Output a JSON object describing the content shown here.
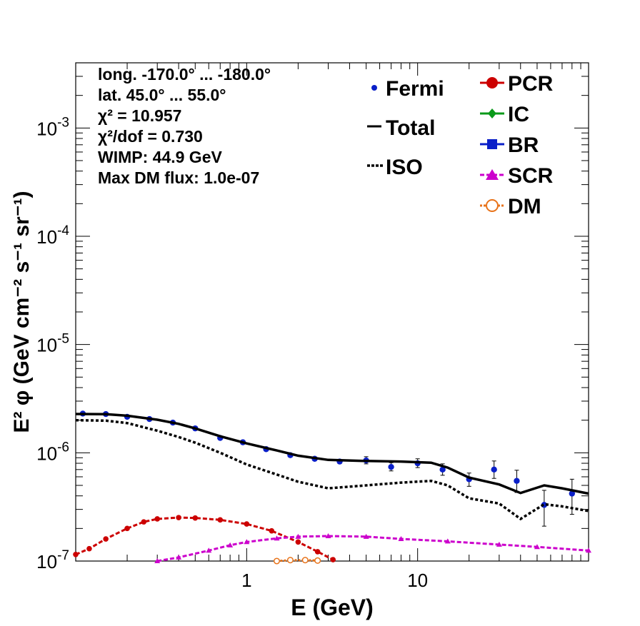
{
  "chart_data": {
    "type": "line",
    "xlabel": "E (GeV)",
    "ylabel": "E² φ (GeV cm⁻² s⁻¹ sr⁻¹)",
    "x_scale": "log",
    "y_scale": "log",
    "xlim": [
      0.1,
      100
    ],
    "ylim": [
      1e-07,
      0.004
    ],
    "x_tick_labels": [
      {
        "value": 1,
        "label": "1"
      },
      {
        "value": 10,
        "label": "10"
      }
    ],
    "y_tick_labels": [
      {
        "value": 1e-07,
        "base": "10",
        "exp": "-7"
      },
      {
        "value": 1e-06,
        "base": "10",
        "exp": "-6"
      },
      {
        "value": 1e-05,
        "base": "10",
        "exp": "-5"
      },
      {
        "value": 0.0001,
        "base": "10",
        "exp": "-4"
      },
      {
        "value": 0.001,
        "base": "10",
        "exp": "-3"
      }
    ],
    "annotations": [
      "long. -170.0° ... -180.0°",
      "lat. 45.0° ... 55.0°",
      "χ² = 10.957",
      "χ²/dof = 0.730",
      "WIMP: 44.9 GeV",
      "Max DM flux: 1.0e-07"
    ],
    "legend_left": [
      {
        "name": "Fermi",
        "style": "point",
        "color": "#0a1fc8"
      },
      {
        "name": "Total",
        "style": "solid",
        "color": "#000000"
      },
      {
        "name": "ISO",
        "style": "dotted",
        "color": "#000000"
      }
    ],
    "legend_right": [
      {
        "name": "PCR",
        "style": "circle",
        "color": "#cc0000"
      },
      {
        "name": "IC",
        "style": "diamond",
        "color": "#0a9a1a"
      },
      {
        "name": "BR",
        "style": "square",
        "color": "#0a1fc8"
      },
      {
        "name": "SCR",
        "style": "triangle",
        "color": "#cc00cc"
      },
      {
        "name": "DM",
        "style": "open-circle",
        "color": "#e8731a"
      }
    ],
    "series": [
      {
        "name": "Fermi",
        "kind": "points",
        "color": "#0a1fc8",
        "points": [
          {
            "x": 0.11,
            "y": 2.3e-06
          },
          {
            "x": 0.15,
            "y": 2.28e-06
          },
          {
            "x": 0.2,
            "y": 2.15e-06
          },
          {
            "x": 0.27,
            "y": 2.05e-06
          },
          {
            "x": 0.37,
            "y": 1.9e-06
          },
          {
            "x": 0.5,
            "y": 1.68e-06
          },
          {
            "x": 0.7,
            "y": 1.37e-06
          },
          {
            "x": 0.95,
            "y": 1.25e-06
          },
          {
            "x": 1.3,
            "y": 1.08e-06
          },
          {
            "x": 1.8,
            "y": 9.5e-07
          },
          {
            "x": 2.5,
            "y": 8.8e-07
          },
          {
            "x": 3.5,
            "y": 8.3e-07
          },
          {
            "x": 5.0,
            "y": 8.5e-07,
            "err": [
              7.9e-07,
              9.2e-07
            ]
          },
          {
            "x": 7.0,
            "y": 7.4e-07,
            "err": [
              6.8e-07,
              8.1e-07
            ]
          },
          {
            "x": 10.0,
            "y": 8e-07,
            "err": [
              7.3e-07,
              8.8e-07
            ]
          },
          {
            "x": 14.0,
            "y": 7e-07,
            "err": [
              6.2e-07,
              7.9e-07
            ]
          },
          {
            "x": 20.0,
            "y": 5.7e-07,
            "err": [
              4.9e-07,
              6.5e-07
            ]
          },
          {
            "x": 28.0,
            "y": 7e-07,
            "err": [
              5.8e-07,
              8.4e-07
            ]
          },
          {
            "x": 38.0,
            "y": 5.5e-07,
            "err": [
              4.3e-07,
              6.9e-07
            ]
          },
          {
            "x": 55.0,
            "y": 3.3e-07,
            "err": [
              2.1e-07,
              4.5e-07
            ]
          },
          {
            "x": 80.0,
            "y": 4.2e-07,
            "err": [
              2.7e-07,
              5.7e-07
            ]
          }
        ]
      },
      {
        "name": "Total",
        "kind": "solid",
        "color": "#000000",
        "points": [
          {
            "x": 0.1,
            "y": 2.28e-06
          },
          {
            "x": 0.15,
            "y": 2.27e-06
          },
          {
            "x": 0.2,
            "y": 2.2e-06
          },
          {
            "x": 0.3,
            "y": 2.02e-06
          },
          {
            "x": 0.4,
            "y": 1.85e-06
          },
          {
            "x": 0.5,
            "y": 1.68e-06
          },
          {
            "x": 0.7,
            "y": 1.42e-06
          },
          {
            "x": 1.0,
            "y": 1.22e-06
          },
          {
            "x": 1.5,
            "y": 1.05e-06
          },
          {
            "x": 2.0,
            "y": 9.4e-07
          },
          {
            "x": 3.0,
            "y": 8.6e-07
          },
          {
            "x": 5.0,
            "y": 8.4e-07
          },
          {
            "x": 8.0,
            "y": 8.3e-07
          },
          {
            "x": 12.0,
            "y": 8.1e-07
          },
          {
            "x": 15.0,
            "y": 7.3e-07
          },
          {
            "x": 20.0,
            "y": 5.9e-07
          },
          {
            "x": 30.0,
            "y": 5.1e-07
          },
          {
            "x": 40.0,
            "y": 4.25e-07
          },
          {
            "x": 55.0,
            "y": 5e-07
          },
          {
            "x": 70.0,
            "y": 4.7e-07
          },
          {
            "x": 100.0,
            "y": 4.2e-07
          }
        ]
      },
      {
        "name": "ISO",
        "kind": "dotted",
        "color": "#000000",
        "points": [
          {
            "x": 0.1,
            "y": 2e-06
          },
          {
            "x": 0.15,
            "y": 1.98e-06
          },
          {
            "x": 0.2,
            "y": 1.88e-06
          },
          {
            "x": 0.3,
            "y": 1.6e-06
          },
          {
            "x": 0.4,
            "y": 1.4e-06
          },
          {
            "x": 0.5,
            "y": 1.24e-06
          },
          {
            "x": 0.7,
            "y": 1e-06
          },
          {
            "x": 1.0,
            "y": 7.8e-07
          },
          {
            "x": 1.5,
            "y": 6.3e-07
          },
          {
            "x": 2.0,
            "y": 5.4e-07
          },
          {
            "x": 3.0,
            "y": 4.7e-07
          },
          {
            "x": 5.0,
            "y": 5e-07
          },
          {
            "x": 8.0,
            "y": 5.3e-07
          },
          {
            "x": 12.0,
            "y": 5.5e-07
          },
          {
            "x": 15.0,
            "y": 5e-07
          },
          {
            "x": 20.0,
            "y": 3.8e-07
          },
          {
            "x": 30.0,
            "y": 3.4e-07
          },
          {
            "x": 40.0,
            "y": 2.45e-07
          },
          {
            "x": 55.0,
            "y": 3.35e-07
          },
          {
            "x": 70.0,
            "y": 3.2e-07
          },
          {
            "x": 100.0,
            "y": 2.9e-07
          }
        ]
      },
      {
        "name": "PCR",
        "kind": "dashed-markers",
        "color": "#cc0000",
        "points": [
          {
            "x": 0.1,
            "y": 1.15e-07
          },
          {
            "x": 0.12,
            "y": 1.3e-07
          },
          {
            "x": 0.15,
            "y": 1.6e-07
          },
          {
            "x": 0.2,
            "y": 2e-07
          },
          {
            "x": 0.25,
            "y": 2.3e-07
          },
          {
            "x": 0.3,
            "y": 2.45e-07
          },
          {
            "x": 0.4,
            "y": 2.52e-07
          },
          {
            "x": 0.5,
            "y": 2.5e-07
          },
          {
            "x": 0.7,
            "y": 2.4e-07
          },
          {
            "x": 1.0,
            "y": 2.2e-07
          },
          {
            "x": 1.4,
            "y": 1.9e-07
          },
          {
            "x": 2.0,
            "y": 1.5e-07
          },
          {
            "x": 2.6,
            "y": 1.22e-07
          },
          {
            "x": 3.2,
            "y": 1.03e-07
          }
        ]
      },
      {
        "name": "SCR",
        "kind": "dashed-markers",
        "color": "#cc00cc",
        "points": [
          {
            "x": 0.3,
            "y": 1e-07
          },
          {
            "x": 0.4,
            "y": 1.08e-07
          },
          {
            "x": 0.6,
            "y": 1.25e-07
          },
          {
            "x": 0.8,
            "y": 1.4e-07
          },
          {
            "x": 1.0,
            "y": 1.5e-07
          },
          {
            "x": 1.5,
            "y": 1.62e-07
          },
          {
            "x": 2.0,
            "y": 1.68e-07
          },
          {
            "x": 3.0,
            "y": 1.7e-07
          },
          {
            "x": 5.0,
            "y": 1.68e-07
          },
          {
            "x": 8.0,
            "y": 1.6e-07
          },
          {
            "x": 15.0,
            "y": 1.52e-07
          },
          {
            "x": 30.0,
            "y": 1.42e-07
          },
          {
            "x": 50.0,
            "y": 1.35e-07
          },
          {
            "x": 100.0,
            "y": 1.25e-07
          }
        ]
      },
      {
        "name": "DM",
        "kind": "dotted-markers",
        "color": "#e8731a",
        "points": [
          {
            "x": 1.5,
            "y": 1e-07
          },
          {
            "x": 1.8,
            "y": 1.02e-07
          },
          {
            "x": 2.2,
            "y": 1.02e-07
          },
          {
            "x": 2.6,
            "y": 1.01e-07
          }
        ]
      }
    ]
  }
}
